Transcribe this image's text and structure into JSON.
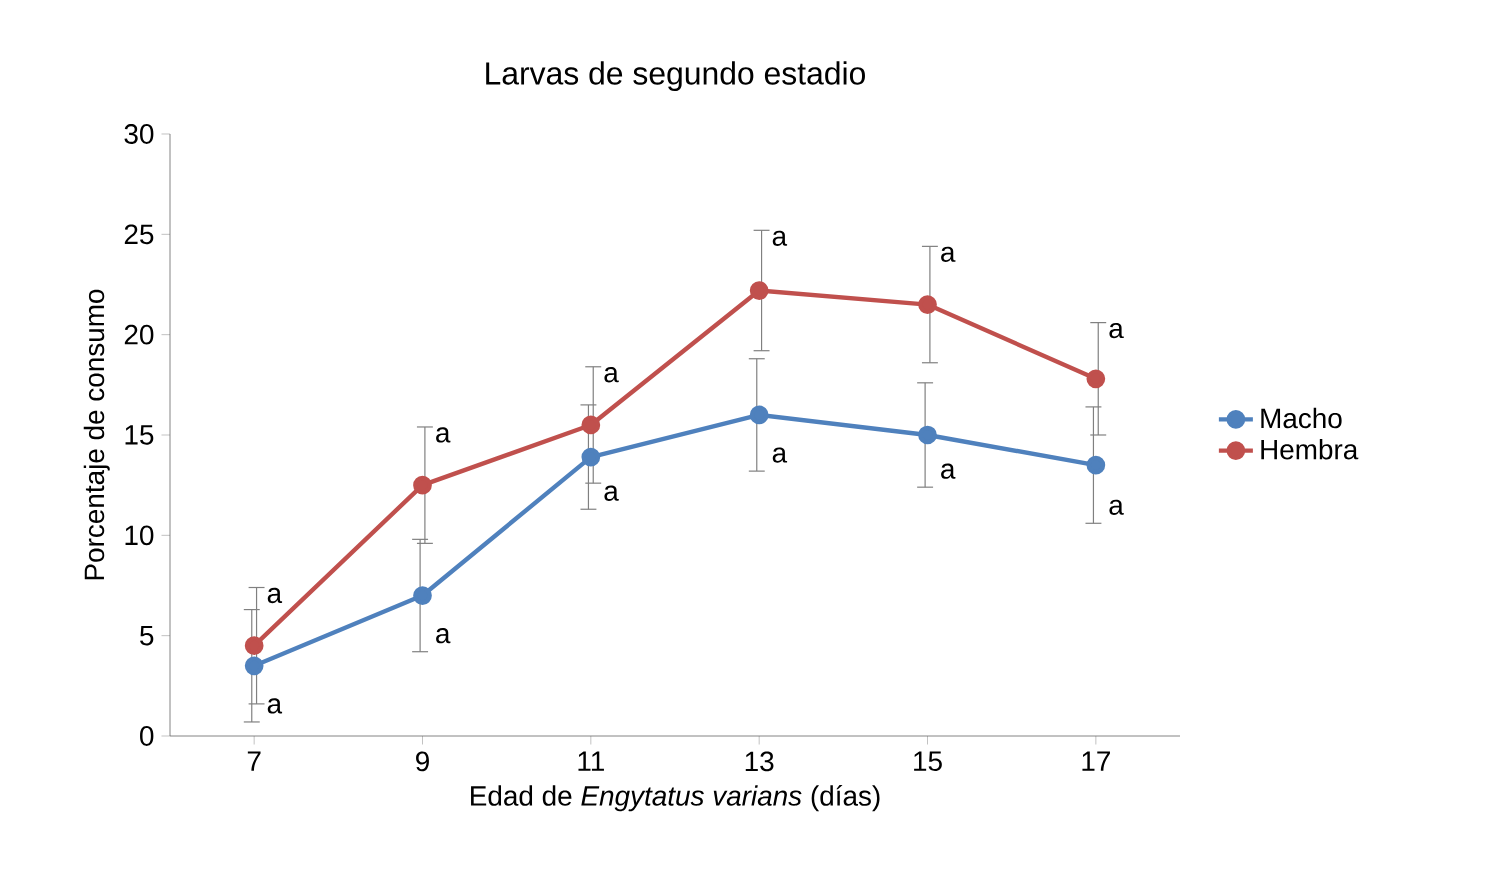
{
  "chart_data": {
    "type": "line",
    "title": "Larvas de segundo estadio",
    "xlabel": "Edad de *Engytatus varians* (días)",
    "ylabel": "Porcentaje de consumo",
    "x": [
      7,
      9,
      11,
      13,
      15,
      17
    ],
    "series": [
      {
        "name": "Macho",
        "color": "#4f81bd",
        "values": [
          3.5,
          7.0,
          13.9,
          16.0,
          15.0,
          13.5
        ],
        "errors": [
          2.8,
          2.8,
          2.6,
          2.8,
          2.6,
          2.9
        ]
      },
      {
        "name": "Hembra",
        "color": "#c0504d",
        "values": [
          4.5,
          12.5,
          15.5,
          22.2,
          21.5,
          17.8
        ],
        "errors": [
          2.9,
          2.9,
          2.9,
          3.0,
          2.9,
          2.8
        ]
      }
    ],
    "xlim": [
      6,
      18
    ],
    "xticks": [
      7,
      9,
      11,
      13,
      15,
      17
    ],
    "ylim": [
      0,
      30
    ],
    "yticks": [
      0,
      5,
      10,
      15,
      20,
      25,
      30
    ],
    "grid": false,
    "legend": "right",
    "marker": "circle",
    "line_style": "solid",
    "annotations": [
      {
        "text": "a",
        "x": 7,
        "y": 7.4
      },
      {
        "text": "a",
        "x": 7,
        "y": 0.7
      },
      {
        "text": "a",
        "x": 9,
        "y": 15.4
      },
      {
        "text": "a",
        "x": 9,
        "y": 4.2
      },
      {
        "text": "a",
        "x": 11,
        "y": 18.4
      },
      {
        "text": "a",
        "x": 11,
        "y": 11.3
      },
      {
        "text": "a",
        "x": 13,
        "y": 25.2
      },
      {
        "text": "a",
        "x": 13,
        "y": 13.2
      },
      {
        "text": "a",
        "x": 15,
        "y": 24.4
      },
      {
        "text": "a",
        "x": 15,
        "y": 12.4
      },
      {
        "text": "a",
        "x": 17,
        "y": 20.6
      },
      {
        "text": "a",
        "x": 17,
        "y": 10.6
      }
    ]
  }
}
